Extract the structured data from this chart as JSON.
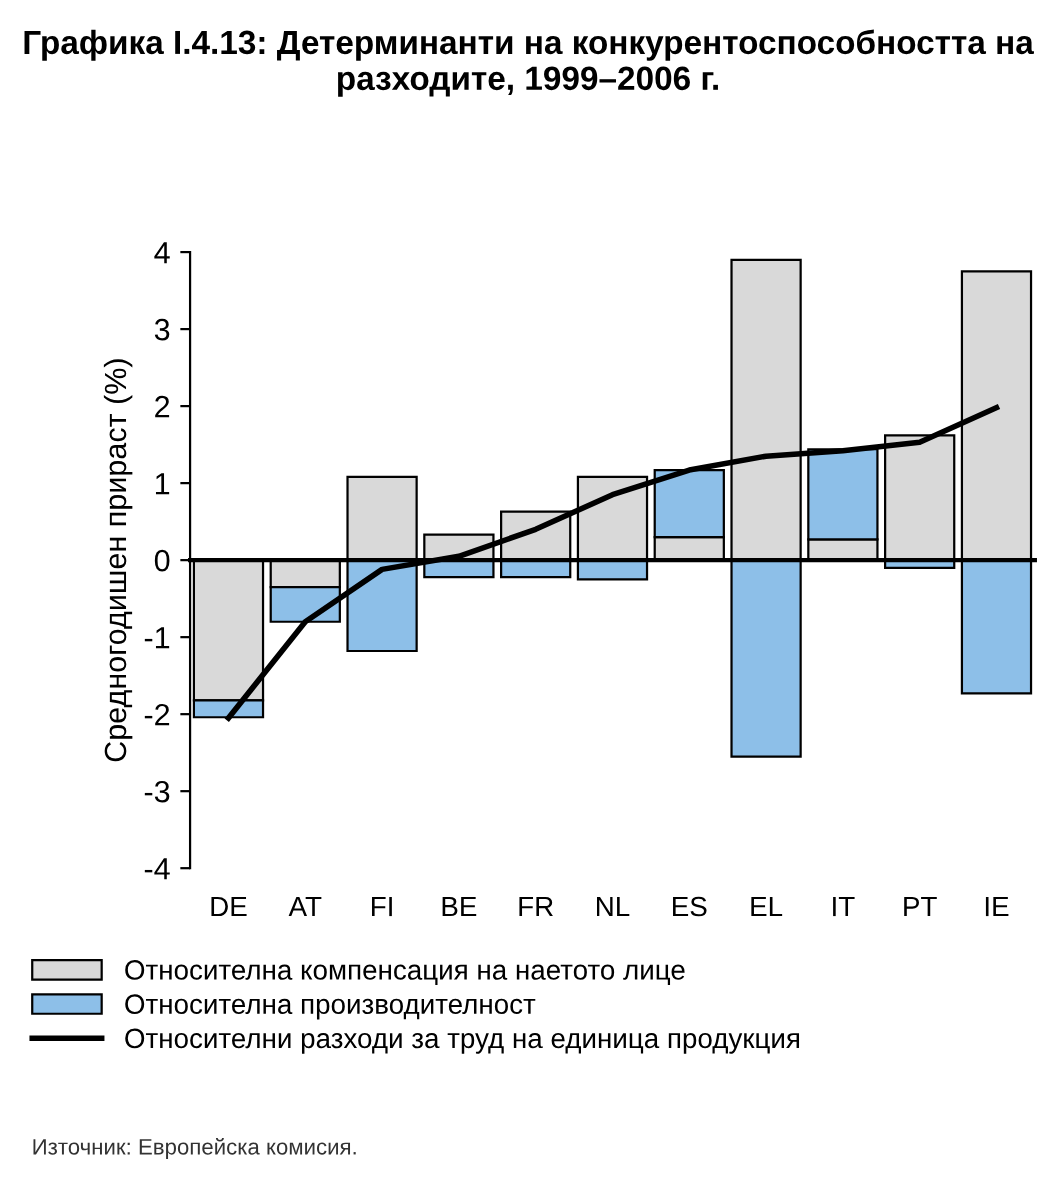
{
  "chart_data": {
    "type": "bar",
    "title": "Графика I.4.13: Детерминанти на конкурентоспособността на разходите, 1999–2006 г.",
    "ylabel": "Средногодишен прираст (%)",
    "categories": [
      "DE",
      "AT",
      "FI",
      "BE",
      "FR",
      "NL",
      "ES",
      "EL",
      "IT",
      "PT",
      "IE"
    ],
    "stacked": true,
    "series": [
      {
        "name": "Относителна компенсация на наетото лице",
        "color": "#d9d9d9",
        "values": [
          -1.82,
          -0.35,
          1.08,
          0.33,
          0.63,
          1.08,
          0.3,
          3.9,
          0.27,
          1.62,
          3.75
        ]
      },
      {
        "name": "Относителна производителност",
        "color": "#8dbfe8",
        "values": [
          -0.22,
          -0.45,
          -1.18,
          -0.22,
          -0.22,
          -0.25,
          0.87,
          -2.55,
          1.17,
          -0.1,
          -1.73
        ]
      },
      {
        "name": "Относителни разходи за труд на единица продукция",
        "type": "line",
        "color": "#000000",
        "values": [
          -2.05,
          -0.8,
          -0.12,
          0.05,
          0.4,
          0.85,
          1.17,
          1.35,
          1.42,
          1.53,
          1.98
        ]
      }
    ],
    "ylim": [
      -4,
      4
    ],
    "yticks": [
      -4,
      -3,
      -2,
      -1,
      0,
      1,
      2,
      3,
      4
    ],
    "legend": "bottom",
    "annotations": [
      "Източник: Европейска комисия."
    ]
  }
}
